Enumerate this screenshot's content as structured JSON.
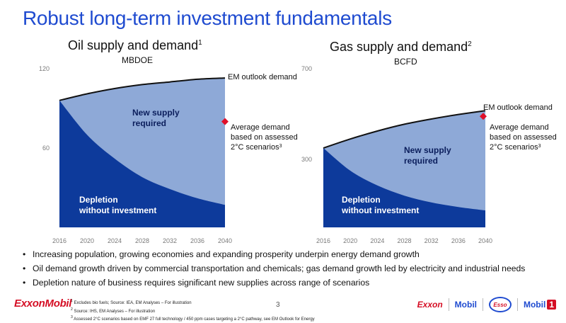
{
  "title": "Robust long-term investment fundamentals",
  "charts_meta": [
    {
      "title": "Oil supply and demand",
      "title_sup": "1",
      "unit": "MBDOE"
    },
    {
      "title": "Gas supply and demand",
      "title_sup": "2",
      "unit": "BCFD"
    }
  ],
  "chart_data": [
    {
      "type": "area",
      "title": "Oil supply and demand",
      "ylabel": "MBDOE",
      "x": [
        2016,
        2020,
        2024,
        2028,
        2032,
        2036,
        2040
      ],
      "x_ticks": [
        "2016",
        "2020",
        "2024",
        "2028",
        "2032",
        "2036",
        "2040"
      ],
      "y_ticks": [
        "120",
        "60"
      ],
      "ylim": [
        0,
        120
      ],
      "series": [
        {
          "name": "EM outlook demand",
          "values": [
            96,
            101,
            105,
            108,
            110,
            112,
            113
          ]
        },
        {
          "name": "Depletion without investment",
          "values": [
            96,
            70,
            52,
            38,
            29,
            22,
            17
          ]
        }
      ],
      "area_labels": [
        "New supply required",
        "Depletion without investment"
      ],
      "marker": {
        "label": "Average demand based on assessed 2°C scenarios",
        "label_sup": "3",
        "x": 2040,
        "y": 80
      },
      "demand_label": "EM outlook demand"
    },
    {
      "type": "area",
      "title": "Gas supply and demand",
      "ylabel": "BCFD",
      "x": [
        2016,
        2020,
        2024,
        2028,
        2032,
        2036,
        2040
      ],
      "x_ticks": [
        "2016",
        "2020",
        "2024",
        "2028",
        "2032",
        "2036",
        "2040"
      ],
      "y_ticks": [
        "700",
        "300"
      ],
      "ylim": [
        0,
        700
      ],
      "series": [
        {
          "name": "EM outlook demand",
          "values": [
            350,
            390,
            425,
            455,
            478,
            498,
            515
          ]
        },
        {
          "name": "Depletion without investment",
          "values": [
            350,
            250,
            185,
            140,
            110,
            90,
            75
          ]
        }
      ],
      "area_labels": [
        "New supply required",
        "Depletion without investment"
      ],
      "marker": {
        "label": "Average demand based on assessed 2°C scenarios",
        "label_sup": "3",
        "x": 2040,
        "y": 490
      },
      "demand_label": "EM outlook demand"
    }
  ],
  "bullets": [
    "Increasing population, growing economies and expanding prosperity underpin energy demand growth",
    "Oil demand growth driven by commercial transportation and chemicals; gas demand growth led by electricity and industrial needs",
    "Depletion nature of business requires significant new supplies across range of scenarios"
  ],
  "footer": {
    "logo": "ExxonMobil",
    "page_number": "3",
    "footnotes": [
      {
        "sup": "1",
        "text": "Excludes bio fuels; Source: IEA, EM Analyses – For illustration"
      },
      {
        "sup": "2",
        "text": "Source: IHS, EM Analyses – For illustration"
      },
      {
        "sup": "3",
        "text": "Assessed 2°C scenarios based on EMF 27 full technology / 450 ppm cases targeting a 2°C pathway, see EM Outlook for Energy"
      }
    ],
    "brands": [
      "Exxon",
      "Mobil",
      "Esso",
      "Mobil",
      "1"
    ]
  },
  "colors": {
    "title_blue": "#1f4bd0",
    "depletion": "#0d3a9b",
    "new_supply": "#8ea9d7",
    "demand_line": "#111111",
    "marker": "#e0102a",
    "axis_text": "#7a7a7a"
  }
}
